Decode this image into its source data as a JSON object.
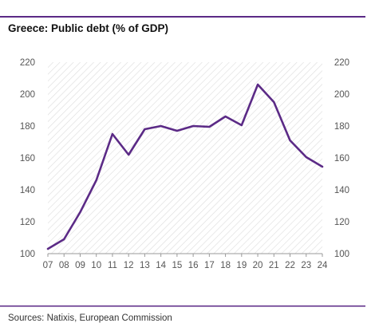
{
  "chart_data": {
    "type": "line",
    "title": "Greece: Public debt (% of GDP)",
    "source": "Sources: Natixis, European Commission",
    "xlabel": "",
    "ylabel": "",
    "categories": [
      "07",
      "08",
      "09",
      "10",
      "11",
      "12",
      "13",
      "14",
      "15",
      "16",
      "17",
      "18",
      "19",
      "20",
      "21",
      "22",
      "23",
      "24"
    ],
    "series": [
      {
        "values": [
          103,
          109,
          126,
          146,
          175,
          162,
          178,
          180,
          177,
          180,
          179.5,
          186,
          180.5,
          206,
          195,
          171,
          160.5,
          154.5
        ]
      }
    ],
    "ylim": [
      100,
      220
    ],
    "yticks": [
      "100",
      "120",
      "140",
      "160",
      "180",
      "200",
      "220"
    ],
    "yticks_right": [
      "100",
      "120",
      "140",
      "160",
      "180",
      "200",
      "220"
    ],
    "grid": false,
    "background_pattern": "diagonal-hatch",
    "line_color": "#5b2a86",
    "hatch_color": "#dcdcdc",
    "axis_color": "#999999",
    "legend": "none"
  }
}
